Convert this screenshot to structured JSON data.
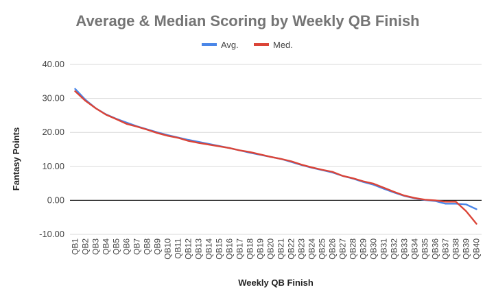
{
  "chart_data": {
    "type": "line",
    "title": "Average & Median Scoring by Weekly QB Finish",
    "xlabel": "Weekly QB Finish",
    "ylabel": "Fantasy Points",
    "ylim": [
      -10,
      40
    ],
    "yticks": [
      "-10.00",
      "0.00",
      "10.00",
      "20.00",
      "30.00",
      "40.00"
    ],
    "grid": true,
    "legend_position": "top",
    "categories": [
      "QB1",
      "QB2",
      "QB3",
      "QB4",
      "QB5",
      "QB6",
      "QB7",
      "QB8",
      "QB9",
      "QB10",
      "QB11",
      "QB12",
      "QB13",
      "QB14",
      "QB15",
      "QB16",
      "QB17",
      "QB18",
      "QB19",
      "QB20",
      "QB21",
      "QB22",
      "QB23",
      "QB24",
      "QB25",
      "QB26",
      "QB27",
      "QB28",
      "QB29",
      "QB30",
      "QB31",
      "QB32",
      "QB33",
      "QB34",
      "QB35",
      "QB36",
      "QB37",
      "QB38",
      "QB39",
      "QB40"
    ],
    "series": [
      {
        "name": "Avg.",
        "color": "#4a86e8",
        "values": [
          32.8,
          29.6,
          27.1,
          25.3,
          24.0,
          22.9,
          21.8,
          20.9,
          20.0,
          19.2,
          18.5,
          17.8,
          17.2,
          16.6,
          16.0,
          15.4,
          14.7,
          14.0,
          13.4,
          12.8,
          12.2,
          11.3,
          10.4,
          9.6,
          8.9,
          8.2,
          7.2,
          6.4,
          5.4,
          4.6,
          3.4,
          2.3,
          1.3,
          0.6,
          0.1,
          -0.2,
          -1.0,
          -1.0,
          -1.2,
          -2.6
        ]
      },
      {
        "name": "Med.",
        "color": "#db4437",
        "values": [
          32.1,
          29.3,
          27.1,
          25.2,
          23.9,
          22.5,
          21.7,
          20.8,
          19.8,
          19.0,
          18.4,
          17.5,
          16.9,
          16.4,
          15.9,
          15.4,
          14.7,
          14.2,
          13.5,
          12.8,
          12.2,
          11.5,
          10.5,
          9.7,
          9.0,
          8.4,
          7.2,
          6.5,
          5.6,
          4.9,
          3.7,
          2.5,
          1.4,
          0.7,
          0.2,
          0.0,
          -0.4,
          -0.4,
          -3.2,
          -6.9
        ]
      }
    ]
  }
}
